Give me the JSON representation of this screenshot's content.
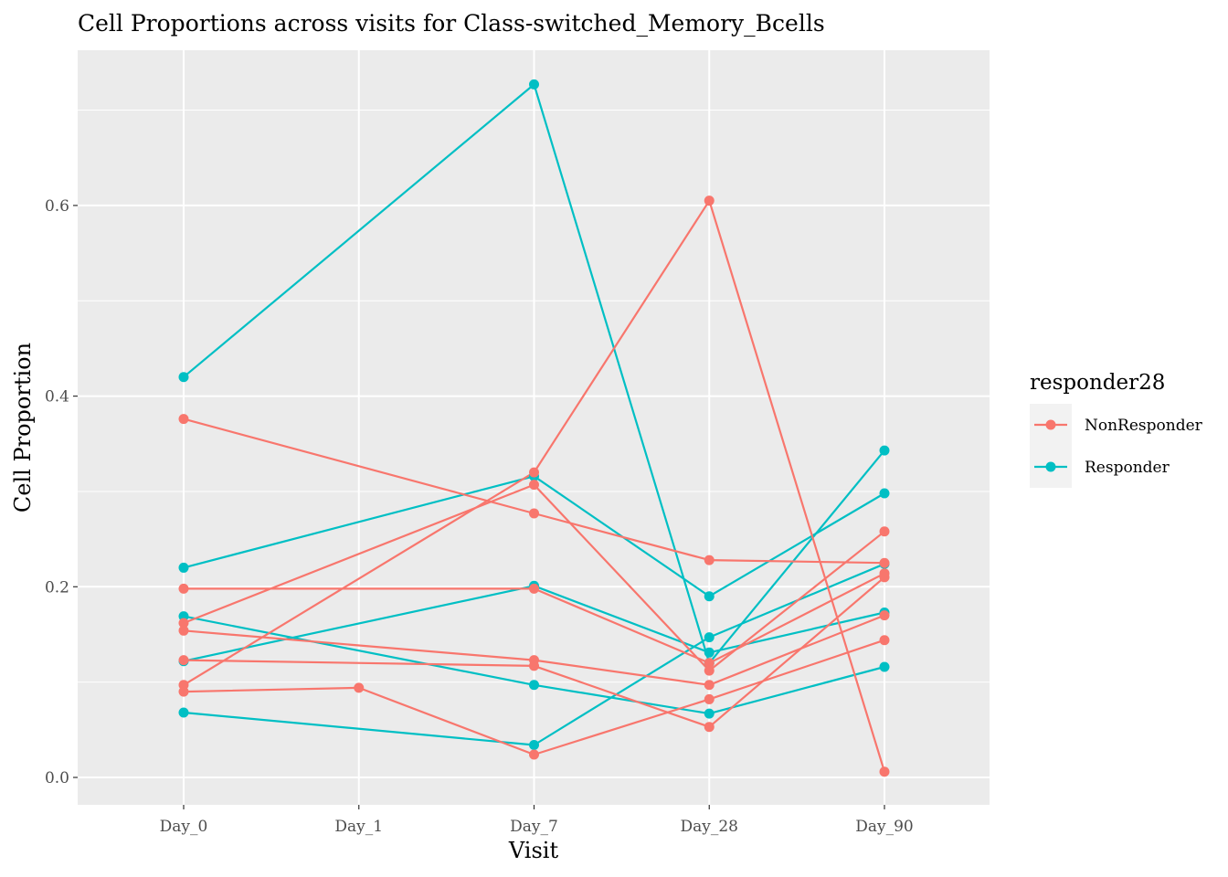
{
  "chart_data": {
    "type": "line",
    "title": "Cell Proportions across visits for Class-switched_Memory_Bcells",
    "xlabel": "Visit",
    "ylabel": "Cell Proportion",
    "categories": [
      "Day_0",
      "Day_1",
      "Day_7",
      "Day_28",
      "Day_90"
    ],
    "ylim": [
      -0.03,
      0.73
    ],
    "yticks": [
      0.0,
      0.2,
      0.4,
      0.6
    ],
    "ytick_labels": [
      "0.0",
      "0.2",
      "0.4",
      "0.6"
    ],
    "grid": true,
    "legend": {
      "title": "responder28",
      "position": "right",
      "items": [
        {
          "label": "NonResponder",
          "color": "#F8766D"
        },
        {
          "label": "Responder",
          "color": "#00BFC4"
        }
      ]
    },
    "series": [
      {
        "group": "Responder",
        "values": [
          0.42,
          null,
          0.727,
          0.12,
          0.343
        ]
      },
      {
        "group": "Responder",
        "values": [
          0.22,
          null,
          0.316,
          0.19,
          0.298
        ]
      },
      {
        "group": "Responder",
        "values": [
          0.169,
          null,
          0.097,
          0.067,
          0.116
        ]
      },
      {
        "group": "Responder",
        "values": [
          0.122,
          null,
          0.201,
          0.131,
          0.173
        ]
      },
      {
        "group": "Responder",
        "values": [
          0.068,
          null,
          0.034,
          0.147,
          0.224
        ]
      },
      {
        "group": "NonResponder",
        "values": [
          0.376,
          null,
          0.277,
          0.228,
          0.225
        ]
      },
      {
        "group": "NonResponder",
        "values": [
          0.198,
          null,
          0.198,
          0.12,
          0.214
        ]
      },
      {
        "group": "NonResponder",
        "values": [
          0.162,
          null,
          0.307,
          0.112,
          0.258
        ]
      },
      {
        "group": "NonResponder",
        "values": [
          0.154,
          null,
          0.123,
          0.097,
          0.17
        ]
      },
      {
        "group": "NonResponder",
        "values": [
          0.123,
          null,
          0.117,
          0.053,
          0.21
        ]
      },
      {
        "group": "NonResponder",
        "values": [
          0.097,
          null,
          0.32,
          0.605,
          0.006
        ]
      },
      {
        "group": "NonResponder",
        "values": [
          0.09,
          0.094,
          0.024,
          0.082,
          0.144
        ]
      }
    ]
  }
}
